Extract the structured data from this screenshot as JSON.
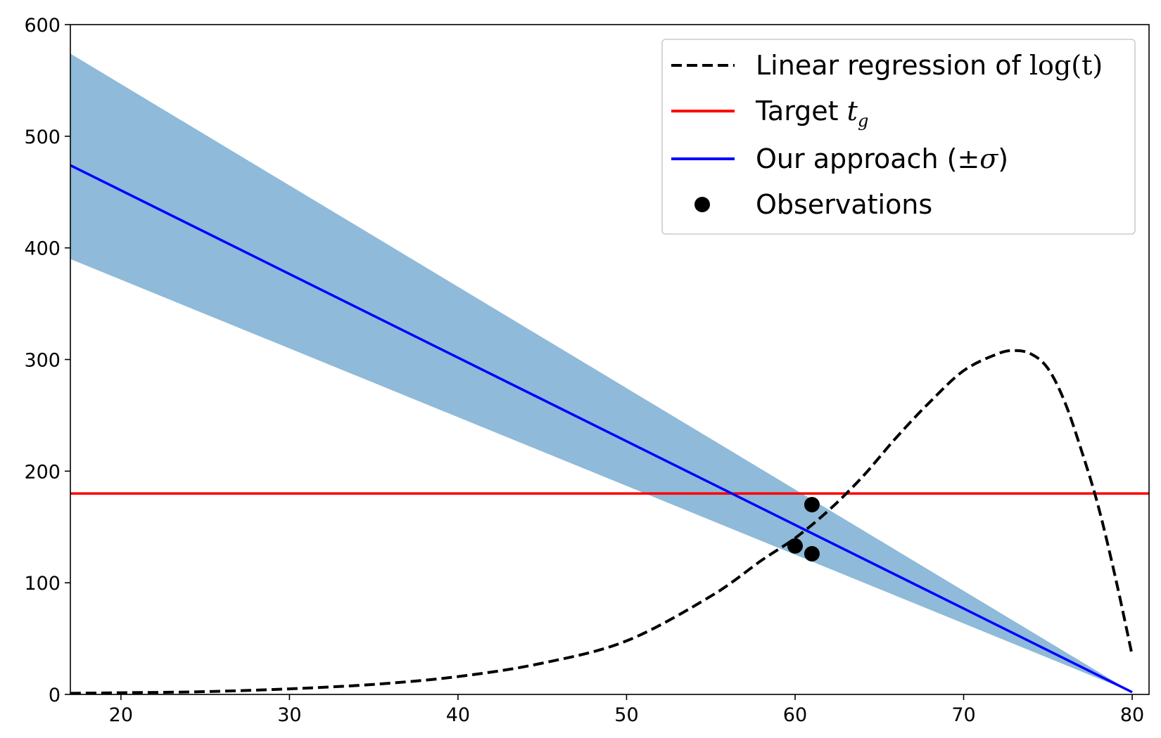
{
  "chart_data": {
    "type": "line",
    "title": "",
    "xlabel": "",
    "ylabel": "",
    "xlim": [
      17,
      81
    ],
    "ylim": [
      0,
      600
    ],
    "x_ticks": [
      20,
      30,
      40,
      50,
      60,
      70,
      80
    ],
    "y_ticks": [
      0,
      100,
      200,
      300,
      400,
      500,
      600
    ],
    "x_tick_labels": [
      "20",
      "30",
      "40",
      "50",
      "60",
      "70",
      "80"
    ],
    "y_tick_labels": [
      "0",
      "100",
      "200",
      "300",
      "400",
      "500",
      "600"
    ],
    "legend_position": "top-right",
    "series": [
      {
        "name": "Linear regression of log(t)",
        "legend_prefix": "Linear regression of ",
        "legend_math": "log(t)",
        "style": "dashed",
        "color": "#000000",
        "x": [
          17,
          20,
          25,
          30,
          35,
          40,
          45,
          50,
          55,
          58,
          60,
          62,
          64,
          66,
          68,
          70,
          72,
          73,
          74,
          75,
          76,
          77,
          78,
          79,
          80
        ],
        "y": [
          1,
          1.5,
          2.5,
          5,
          9,
          16,
          28,
          48,
          88,
          120,
          140,
          165,
          195,
          230,
          262,
          290,
          305,
          308,
          305,
          292,
          262,
          218,
          168,
          105,
          35
        ]
      },
      {
        "name": "Target t_g",
        "legend_prefix": "Target ",
        "legend_math": "t",
        "legend_math_sub": "g",
        "style": "solid",
        "color": "#ff0000",
        "y_const": 180
      },
      {
        "name": "Our approach (±σ)",
        "legend_prefix": "Our approach (",
        "legend_math": "±σ",
        "legend_suffix": ")",
        "style": "solid",
        "color": "#0000ff",
        "x": [
          17,
          80
        ],
        "y": [
          474,
          2
        ],
        "band_upper": [
          574,
          2
        ],
        "band_lower": [
          390,
          2
        ],
        "band_color": "#8fbad9"
      },
      {
        "name": "Observations",
        "legend_prefix": "Observations",
        "style": "scatter",
        "color": "#000000",
        "x": [
          60,
          61,
          61
        ],
        "y": [
          133,
          170,
          126
        ]
      }
    ]
  }
}
